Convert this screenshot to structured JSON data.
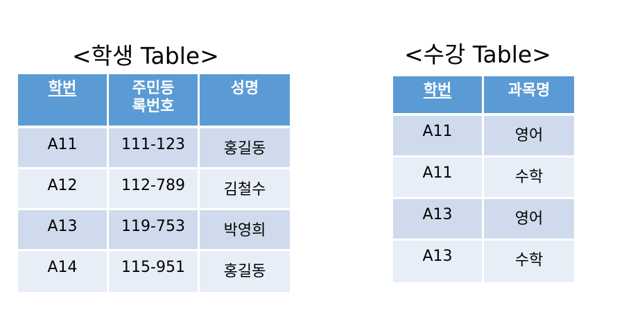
{
  "student_table": {
    "title": "<학생 Table>",
    "headers": [
      "학번",
      "주민등\n록번호",
      "성명"
    ],
    "rows": [
      [
        "A11",
        "111-123",
        "홍길동"
      ],
      [
        "A12",
        "112-789",
        "김철수"
      ],
      [
        "A13",
        "119-753",
        "박영희"
      ],
      [
        "A14",
        "115-951",
        "홍길동"
      ]
    ]
  },
  "enroll_table": {
    "title": "<수강 Table>",
    "headers": [
      "학번",
      "과목명"
    ],
    "rows": [
      [
        "A11",
        "영어"
      ],
      [
        "A11",
        "수학"
      ],
      [
        "A13",
        "영어"
      ],
      [
        "A13",
        "수학"
      ]
    ]
  },
  "colors": {
    "header_bg": "#5b9bd5",
    "row_odd_bg": "#cfdbed",
    "row_even_bg": "#e8eef7"
  }
}
